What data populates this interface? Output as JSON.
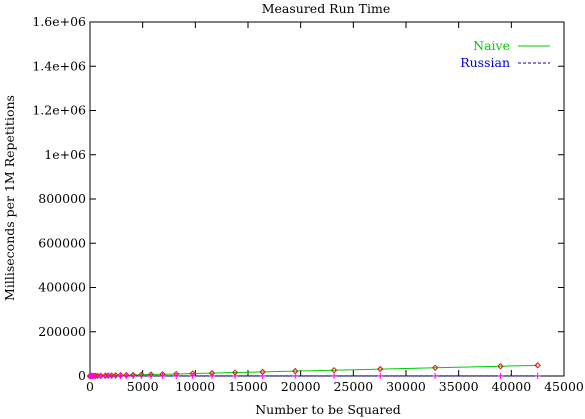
{
  "chart_data": {
    "type": "scatter",
    "title": "Measured Run Time",
    "xlabel": "Number to be Squared",
    "ylabel": "Milliseconds per 1M Repetitions",
    "xlim": [
      0,
      45000
    ],
    "ylim": [
      0,
      1600000
    ],
    "x_ticks": [
      0,
      5000,
      10000,
      15000,
      20000,
      25000,
      30000,
      35000,
      40000,
      45000
    ],
    "y_ticks": [
      0,
      200000,
      400000,
      600000,
      800000,
      1000000,
      1200000,
      1400000,
      1600000
    ],
    "x_tick_labels": [
      "0",
      "5000",
      "10000",
      "15000",
      "20000",
      "25000",
      "30000",
      "35000",
      "40000",
      "45000"
    ],
    "y_tick_labels": [
      "0",
      "200000",
      "400000",
      "600000",
      "800000",
      "1e+06",
      "1.2e+06",
      "1.4e+06",
      "1.6e+06"
    ],
    "grid": false,
    "legend_position": "top-right",
    "series": [
      {
        "name": "Naive",
        "style": "line-with-points",
        "color": "#00cc00",
        "marker_color": "#cc2200",
        "marker": "diamond",
        "x": [
          1,
          2,
          3,
          4,
          6,
          8,
          11,
          16,
          23,
          32,
          45,
          64,
          91,
          128,
          181,
          256,
          362,
          512,
          724,
          1024,
          1448,
          1722,
          2048,
          2435,
          2896,
          3444,
          4096,
          4871,
          5793,
          6889,
          8192,
          9742,
          11585,
          13777,
          16384,
          19484,
          23170,
          27554,
          32768,
          38968,
          42500
        ],
        "y": [
          1,
          2,
          3,
          5,
          7,
          9,
          12,
          18,
          26,
          36,
          51,
          72,
          103,
          145,
          205,
          290,
          410,
          580,
          820,
          1160,
          1640,
          1951,
          2320,
          2759,
          3281,
          3902,
          4640,
          5518,
          6563,
          7804,
          9280,
          11036,
          13124,
          15608,
          18560,
          22072,
          26248,
          31216,
          37120,
          44144,
          48147
        ]
      },
      {
        "name": "Russian",
        "style": "dashed-line-with-points",
        "color": "#0000cc",
        "marker_color": "#ff00ff",
        "marker": "plus",
        "x": [
          1,
          2,
          3,
          4,
          6,
          8,
          11,
          16,
          23,
          32,
          45,
          64,
          91,
          128,
          181,
          256,
          362,
          512,
          724,
          1024,
          1448,
          1722,
          2048,
          2435,
          2896,
          3444,
          4096,
          4871,
          5793,
          6889,
          8192,
          9742,
          11585,
          13777,
          16384,
          19484,
          23170,
          27554,
          32768,
          38968,
          42500
        ],
        "y": [
          200,
          210,
          220,
          230,
          240,
          250,
          260,
          270,
          280,
          290,
          300,
          310,
          320,
          330,
          340,
          350,
          360,
          370,
          380,
          390,
          400,
          410,
          420,
          430,
          440,
          450,
          460,
          470,
          480,
          490,
          500,
          510,
          520,
          530,
          540,
          550,
          560,
          570,
          580,
          590,
          600
        ]
      }
    ]
  }
}
